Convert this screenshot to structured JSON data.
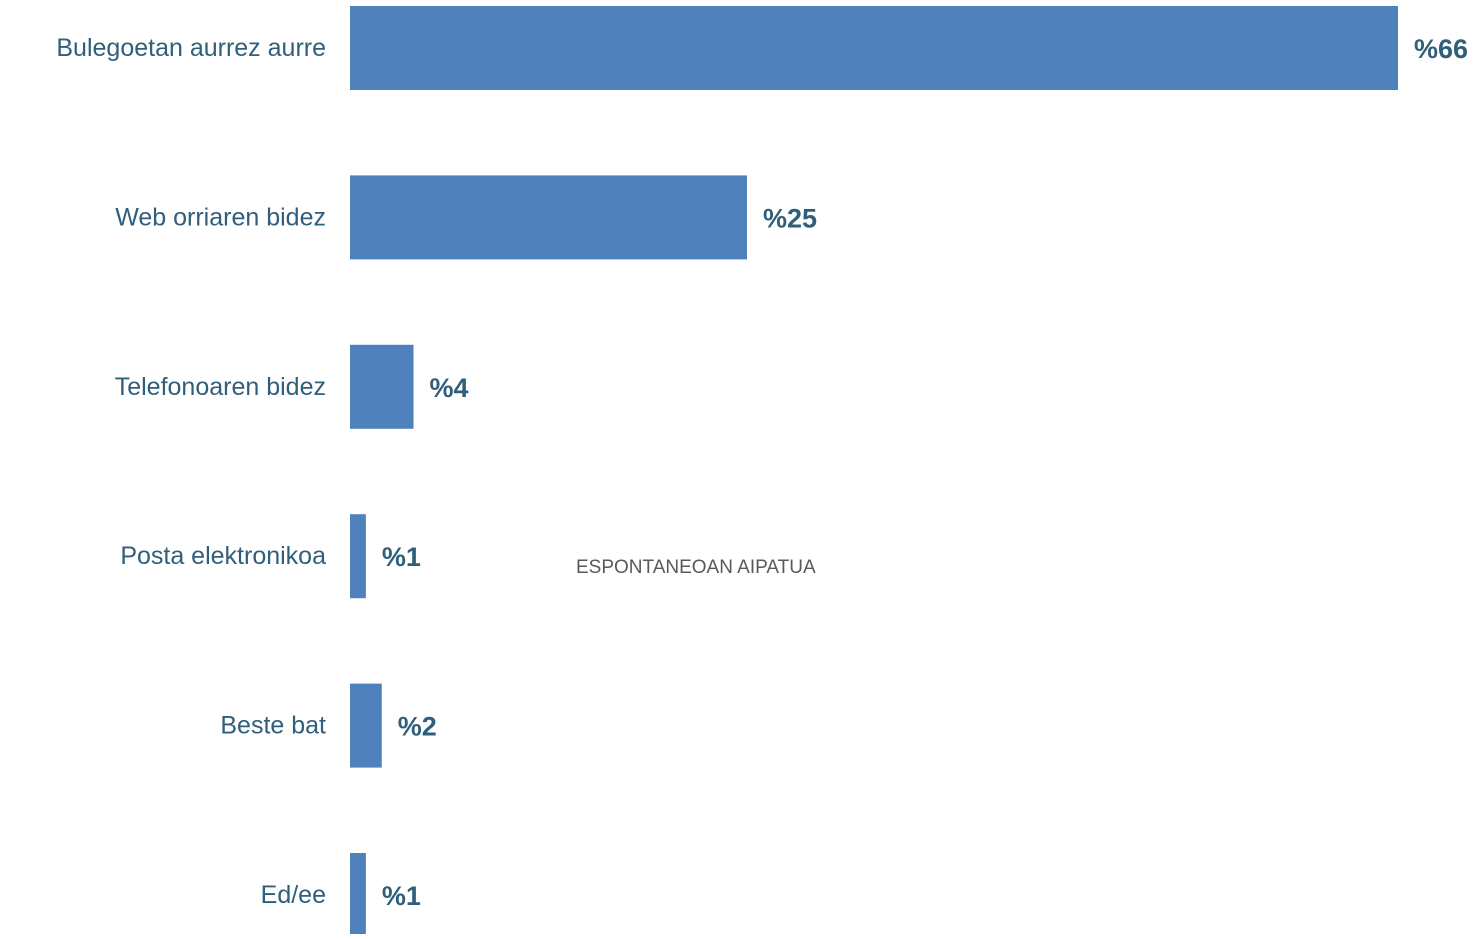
{
  "chart_data": {
    "type": "bar",
    "orientation": "horizontal",
    "categories": [
      "Bulegoetan aurrez aurre",
      "Web orriaren bidez",
      "Telefonoaren bidez",
      "Posta elektronikoa",
      "Beste bat",
      "Ed/ee"
    ],
    "values": [
      66,
      25,
      4,
      1,
      2,
      1
    ],
    "value_labels": [
      "%66",
      "%25",
      "%4",
      "%1",
      "%2",
      "%1"
    ],
    "title": "",
    "xlabel": "",
    "ylabel": "",
    "xlim": [
      0,
      66
    ],
    "grid": false,
    "legend": "none",
    "annotation": "ESPONTANEOAN AIPATUA",
    "colors": {
      "bar": "#4f81bd",
      "label": "#2f5f7a",
      "annotation": "#595959"
    }
  }
}
